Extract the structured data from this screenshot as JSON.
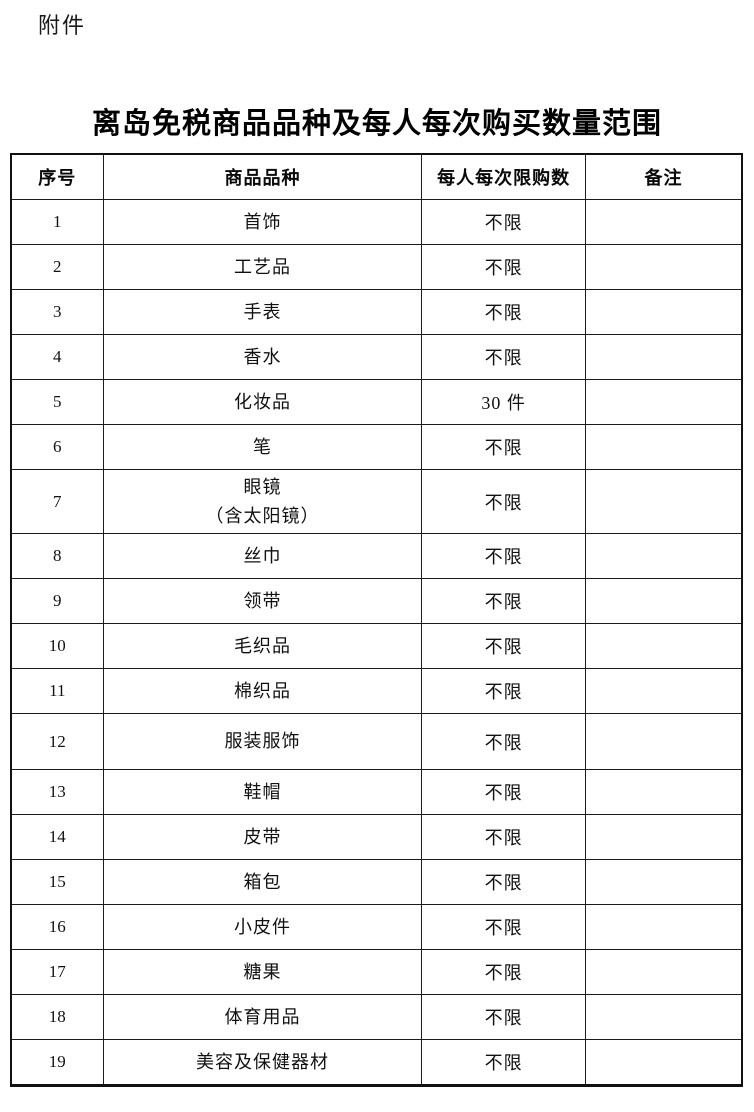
{
  "page": {
    "attachment_label": "附件",
    "title": "离岛免税商品品种及每人每次购买数量范围"
  },
  "table": {
    "headers": [
      "序号",
      "商品品种",
      "每人每次限购数",
      "备注"
    ],
    "rows": [
      {
        "no": "1",
        "category": "首饰",
        "limit": "不限",
        "remark": ""
      },
      {
        "no": "2",
        "category": "工艺品",
        "limit": "不限",
        "remark": ""
      },
      {
        "no": "3",
        "category": "手表",
        "limit": "不限",
        "remark": ""
      },
      {
        "no": "4",
        "category": "香水",
        "limit": "不限",
        "remark": ""
      },
      {
        "no": "5",
        "category": "化妆品",
        "limit": "30 件",
        "remark": ""
      },
      {
        "no": "6",
        "category": "笔",
        "limit": "不限",
        "remark": ""
      },
      {
        "no": "7",
        "category": "眼镜\n（含太阳镜）",
        "limit": "不限",
        "remark": ""
      },
      {
        "no": "8",
        "category": "丝巾",
        "limit": "不限",
        "remark": ""
      },
      {
        "no": "9",
        "category": "领带",
        "limit": "不限",
        "remark": ""
      },
      {
        "no": "10",
        "category": "毛织品",
        "limit": "不限",
        "remark": ""
      },
      {
        "no": "11",
        "category": "棉织品",
        "limit": "不限",
        "remark": ""
      },
      {
        "no": "12",
        "category": "服装服饰",
        "limit": "不限",
        "remark": ""
      },
      {
        "no": "13",
        "category": "鞋帽",
        "limit": "不限",
        "remark": ""
      },
      {
        "no": "14",
        "category": "皮带",
        "limit": "不限",
        "remark": ""
      },
      {
        "no": "15",
        "category": "箱包",
        "limit": "不限",
        "remark": ""
      },
      {
        "no": "16",
        "category": "小皮件",
        "limit": "不限",
        "remark": ""
      },
      {
        "no": "17",
        "category": "糖果",
        "limit": "不限",
        "remark": ""
      },
      {
        "no": "18",
        "category": "体育用品",
        "limit": "不限",
        "remark": ""
      },
      {
        "no": "19",
        "category": "美容及保健器材",
        "limit": "不限",
        "remark": ""
      }
    ]
  }
}
